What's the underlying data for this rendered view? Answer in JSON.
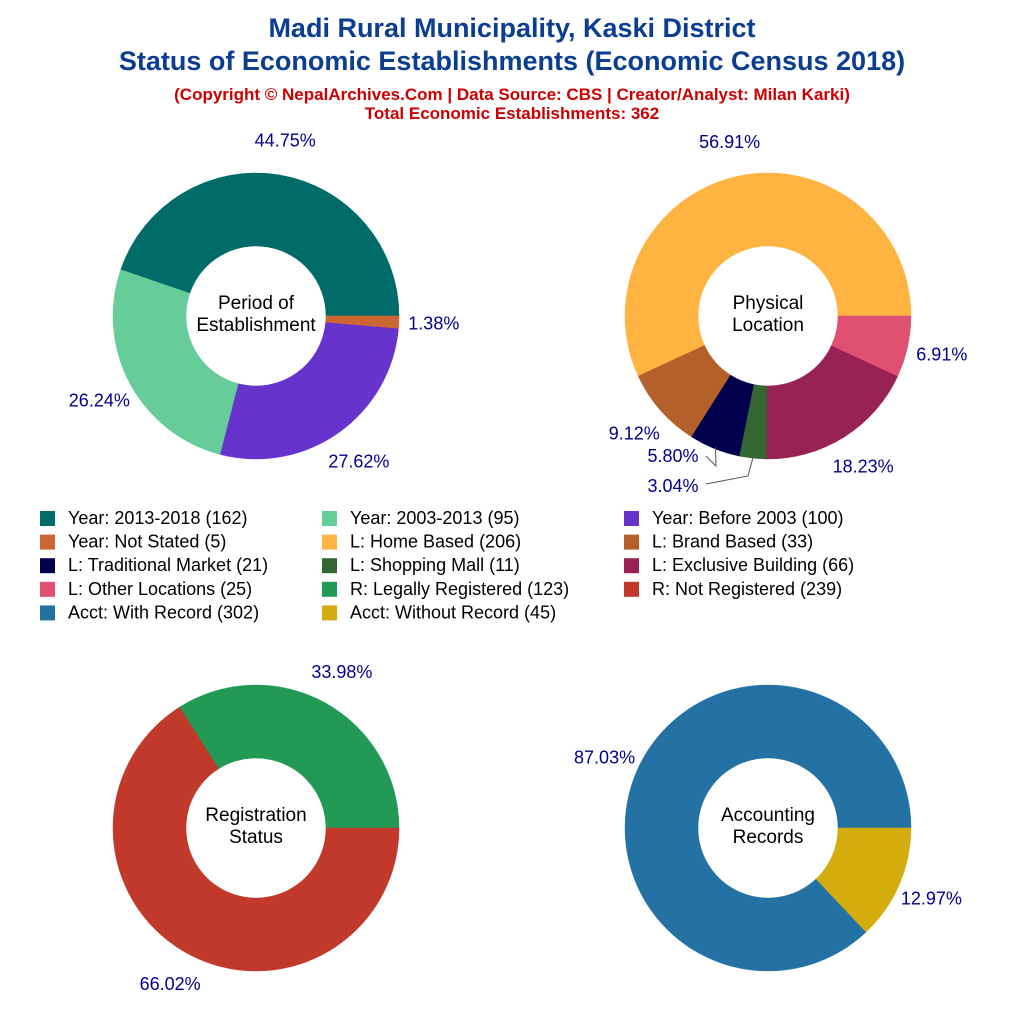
{
  "title_line1": "Madi Rural Municipality, Kaski District",
  "title_line2": "Status of Economic Establishments (Economic Census 2018)",
  "subtitle_line1": "(Copyright © NepalArchives.Com | Data Source: CBS | Creator/Analyst: Milan Karki)",
  "subtitle_line2": "Total Economic Establishments: 362",
  "chart_data": [
    {
      "type": "pie",
      "donut": true,
      "center_label": [
        "Period of",
        "Establishment"
      ],
      "start": "east",
      "direction": "counterclockwise",
      "slices": [
        {
          "label": "Year: 2013-2018 (162)",
          "value": 162,
          "pct": "44.75%",
          "color": "#006b68"
        },
        {
          "label": "Year: 2003-2013 (95)",
          "value": 95,
          "pct": "26.24%",
          "color": "#66cc99"
        },
        {
          "label": "Year: Before 2003 (100)",
          "value": 100,
          "pct": "27.62%",
          "color": "#6633cc"
        },
        {
          "label": "Year: Not Stated (5)",
          "value": 5,
          "pct": "1.38%",
          "color": "#cc6633"
        }
      ]
    },
    {
      "type": "pie",
      "donut": true,
      "center_label": [
        "Physical",
        "Location"
      ],
      "start": "east",
      "direction": "counterclockwise",
      "slices": [
        {
          "label": "L: Home Based (206)",
          "value": 206,
          "pct": "56.91%",
          "color": "#ffb340"
        },
        {
          "label": "L: Brand Based (33)",
          "value": 33,
          "pct": "9.12%",
          "color": "#b5602b"
        },
        {
          "label": "L: Traditional Market (21)",
          "value": 21,
          "pct": "5.80%",
          "color": "#00004d"
        },
        {
          "label": "L: Shopping Mall (11)",
          "value": 11,
          "pct": "3.04%",
          "color": "#336633"
        },
        {
          "label": "L: Exclusive Building (66)",
          "value": 66,
          "pct": "18.23%",
          "color": "#992255"
        },
        {
          "label": "L: Other Locations (25)",
          "value": 25,
          "pct": "6.91%",
          "color": "#e05070"
        }
      ]
    },
    {
      "type": "pie",
      "donut": true,
      "center_label": [
        "Registration",
        "Status"
      ],
      "start": "east",
      "direction": "counterclockwise",
      "slices": [
        {
          "label": "R: Legally Registered (123)",
          "value": 123,
          "pct": "33.98%",
          "color": "#229955"
        },
        {
          "label": "R: Not Registered (239)",
          "value": 239,
          "pct": "66.02%",
          "color": "#c0392b"
        }
      ]
    },
    {
      "type": "pie",
      "donut": true,
      "center_label": [
        "Accounting",
        "Records"
      ],
      "start": "east",
      "direction": "counterclockwise",
      "slices": [
        {
          "label": "Acct: With Record (302)",
          "value": 302,
          "pct": "87.03%",
          "color": "#2471a3"
        },
        {
          "label": "Acct: Without Record (45)",
          "value": 45,
          "pct": "12.97%",
          "color": "#d4ac0d"
        }
      ]
    }
  ],
  "legend": [
    {
      "label": "Year: 2013-2018 (162)",
      "color": "#006b68"
    },
    {
      "label": "Year: 2003-2013 (95)",
      "color": "#66cc99"
    },
    {
      "label": "Year: Before 2003 (100)",
      "color": "#6633cc"
    },
    {
      "label": "Year: Not Stated (5)",
      "color": "#cc6633"
    },
    {
      "label": "L: Home Based (206)",
      "color": "#ffb340"
    },
    {
      "label": "L: Brand Based (33)",
      "color": "#b5602b"
    },
    {
      "label": "L: Traditional Market (21)",
      "color": "#00004d"
    },
    {
      "label": "L: Shopping Mall (11)",
      "color": "#336633"
    },
    {
      "label": "L: Exclusive Building (66)",
      "color": "#992255"
    },
    {
      "label": "L: Other Locations (25)",
      "color": "#e05070"
    },
    {
      "label": "R: Legally Registered (123)",
      "color": "#229955"
    },
    {
      "label": "R: Not Registered (239)",
      "color": "#c0392b"
    },
    {
      "label": "Acct: With Record (302)",
      "color": "#2471a3"
    },
    {
      "label": "Acct: Without Record (45)",
      "color": "#d4ac0d"
    }
  ]
}
